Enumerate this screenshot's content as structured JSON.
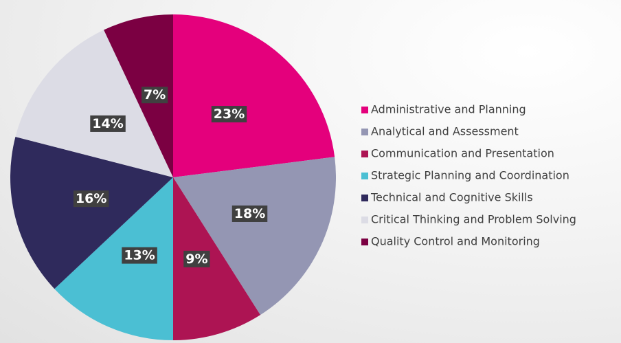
{
  "chart_data": {
    "type": "pie",
    "categories": [
      "Administrative and Planning",
      "Analytical and Assessment",
      "Communication and Presentation",
      "Strategic Planning and Coordination",
      "Technical and Cognitive Skills",
      "Critical Thinking and Problem Solving",
      "Quality Control and Monitoring"
    ],
    "values": [
      23,
      18,
      9,
      13,
      16,
      14,
      7
    ],
    "value_labels": [
      "23%",
      "18%",
      "9%",
      "13%",
      "16%",
      "14%",
      "7%"
    ],
    "colors": [
      "#e4007c",
      "#9496b3",
      "#ad1453",
      "#4bbfd3",
      "#2f2a5c",
      "#dcdce5",
      "#7b0042"
    ],
    "legend": "right"
  }
}
